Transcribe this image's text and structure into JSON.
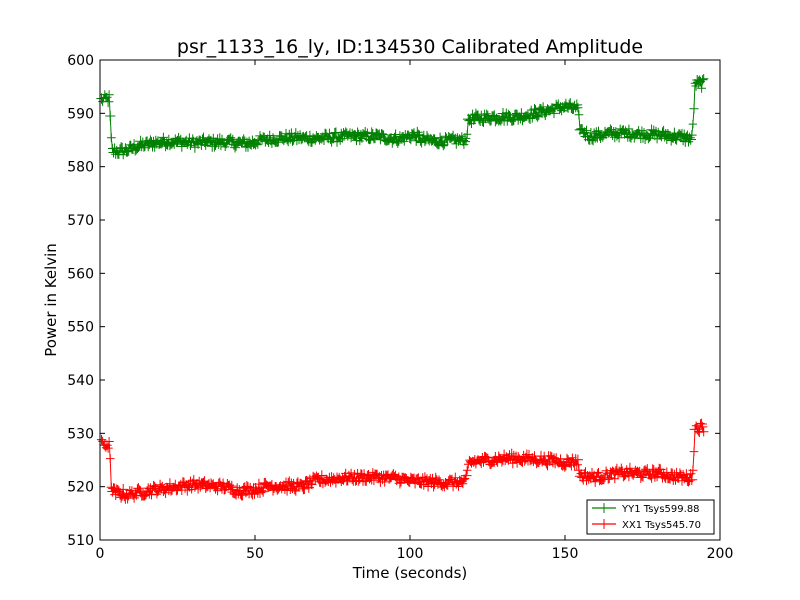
{
  "chart_data": {
    "type": "line",
    "title": "psr_1133_16_ly, ID:134530 Calibrated Amplitude",
    "xlabel": "Time (seconds)",
    "ylabel": "Power in Kelvin",
    "xlim": [
      0,
      200
    ],
    "ylim": [
      510,
      600
    ],
    "xticks": [
      0,
      50,
      100,
      150,
      200
    ],
    "yticks": [
      510,
      520,
      530,
      540,
      550,
      560,
      570,
      580,
      590,
      600
    ],
    "grid": false,
    "legend_position": "lower-right",
    "marker": "plus",
    "series": [
      {
        "name": "YY1 Tsys599.88",
        "color": "#008000",
        "knots": [
          [
            0.5,
            592.5
          ],
          [
            3,
            592.8
          ],
          [
            3.8,
            583
          ],
          [
            6,
            582.8
          ],
          [
            8,
            583
          ],
          [
            12,
            583.8
          ],
          [
            18,
            584.5
          ],
          [
            22,
            584.8
          ],
          [
            30,
            584.5
          ],
          [
            40,
            584.6
          ],
          [
            48,
            584.3
          ],
          [
            52,
            585
          ],
          [
            60,
            585.4
          ],
          [
            70,
            585.3
          ],
          [
            80,
            585.7
          ],
          [
            90,
            585.6
          ],
          [
            97,
            585.2
          ],
          [
            101,
            586
          ],
          [
            104,
            585
          ],
          [
            110,
            584.8
          ],
          [
            118,
            585
          ],
          [
            119,
            588.8
          ],
          [
            125,
            589.3
          ],
          [
            135,
            589.4
          ],
          [
            140,
            590
          ],
          [
            150,
            591.3
          ],
          [
            154,
            590.8
          ],
          [
            155,
            587
          ],
          [
            158,
            585.7
          ],
          [
            165,
            586.2
          ],
          [
            170,
            586.3
          ],
          [
            180,
            586
          ],
          [
            187,
            585.6
          ],
          [
            191,
            585.2
          ],
          [
            192,
            595.5
          ],
          [
            195,
            595.6
          ]
        ],
        "noise": 0.9
      },
      {
        "name": "XX1 Tsys545.70",
        "color": "#ff0000",
        "knots": [
          [
            0.5,
            528
          ],
          [
            3,
            527.8
          ],
          [
            3.8,
            519
          ],
          [
            6,
            518.8
          ],
          [
            9,
            518.5
          ],
          [
            15,
            519.2
          ],
          [
            20,
            519.6
          ],
          [
            30,
            520.4
          ],
          [
            40,
            520
          ],
          [
            45,
            519.2
          ],
          [
            50,
            519.5
          ],
          [
            55,
            520.2
          ],
          [
            65,
            520
          ],
          [
            70,
            521.2
          ],
          [
            80,
            521.7
          ],
          [
            90,
            521.8
          ],
          [
            97,
            521.5
          ],
          [
            100,
            521
          ],
          [
            110,
            520.8
          ],
          [
            118,
            520.8
          ],
          [
            119,
            524.6
          ],
          [
            128,
            525.2
          ],
          [
            135,
            525.3
          ],
          [
            145,
            525
          ],
          [
            150,
            524.6
          ],
          [
            154,
            524.8
          ],
          [
            155,
            522
          ],
          [
            160,
            521.8
          ],
          [
            165,
            522.3
          ],
          [
            170,
            522.6
          ],
          [
            175,
            522.4
          ],
          [
            180,
            522.5
          ],
          [
            187,
            521.8
          ],
          [
            191,
            521.6
          ],
          [
            192,
            531
          ],
          [
            195,
            531.2
          ]
        ],
        "noise": 0.9
      }
    ]
  }
}
